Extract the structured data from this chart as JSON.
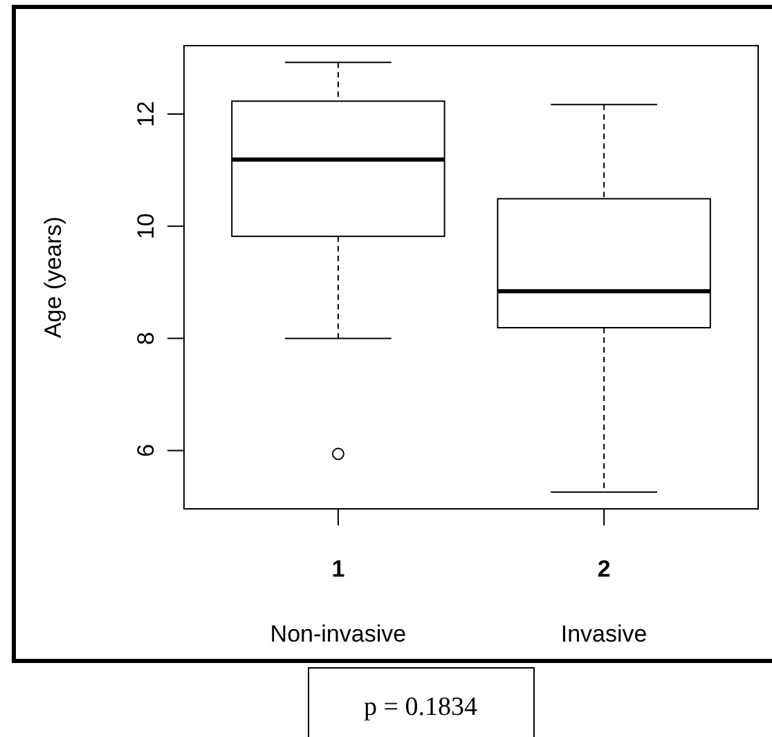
{
  "chart_data": {
    "type": "box",
    "ylabel": "Age (years)",
    "categories": [
      "1",
      "2"
    ],
    "boxes": [
      {
        "low": 8.0,
        "q1": 9.82,
        "median": 11.19,
        "q3": 12.23,
        "high": 12.92,
        "outliers": [
          5.94
        ]
      },
      {
        "low": 5.26,
        "q1": 8.19,
        "median": 8.84,
        "q3": 10.49,
        "high": 12.17
      }
    ],
    "ylim": [
      4.96,
      13.22
    ],
    "yticks": [
      6,
      8,
      10,
      12
    ],
    "grid": false,
    "annotations": [
      "Non-invasive",
      "Invasive",
      "p = 0.1834"
    ]
  }
}
